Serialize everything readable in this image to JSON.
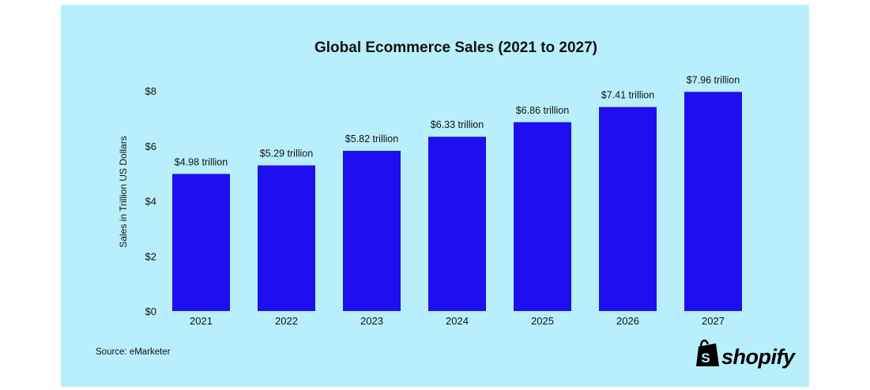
{
  "chart_data": {
    "type": "bar",
    "title": "Global Ecommerce Sales (2021 to 2027)",
    "ylabel": "Sales in Trillion US Dollars",
    "xlabel": "",
    "categories": [
      "2021",
      "2022",
      "2023",
      "2024",
      "2025",
      "2026",
      "2027"
    ],
    "values": [
      4.98,
      5.29,
      5.82,
      6.33,
      6.86,
      7.41,
      7.96
    ],
    "data_labels": [
      "$4.98 trillion",
      "$5.29 trillion",
      "$5.82 trillion",
      "$6.33 trillion",
      "$6.86 trillion",
      "$7.41 trillion",
      "$7.96 trillion"
    ],
    "y_ticks": [
      {
        "value": 0,
        "label": "$0"
      },
      {
        "value": 2,
        "label": "$2"
      },
      {
        "value": 4,
        "label": "$4"
      },
      {
        "value": 6,
        "label": "$6"
      },
      {
        "value": 8,
        "label": "$8"
      }
    ],
    "ylim": [
      0,
      8
    ],
    "grid": false,
    "bar_color": "#1d0ff0",
    "background_color": "#b9effc"
  },
  "source": "Source: eMarketer",
  "brand": {
    "name": "shopify",
    "icon": "shopify-bag-icon"
  }
}
